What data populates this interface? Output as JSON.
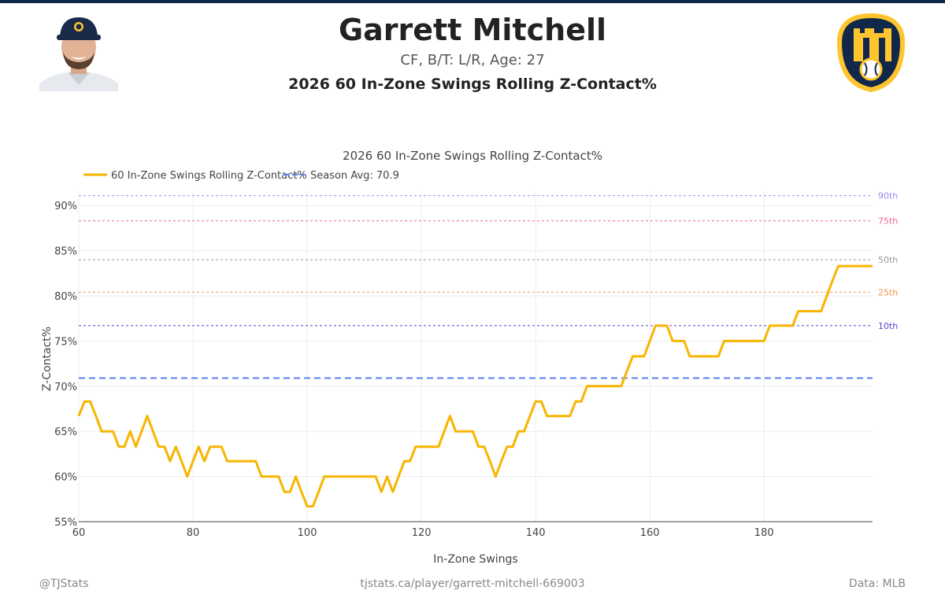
{
  "header": {
    "player_name": "Garrett Mitchell",
    "player_info": "CF, B/T: L/R, Age: 27",
    "chart_heading": "2026 60 In-Zone Swings Rolling Z-Contact%"
  },
  "footer": {
    "handle": "@TJStats",
    "url": "tjstats.ca/player/garrett-mitchell-669003",
    "source": "Data: MLB"
  },
  "colors": {
    "line": "#f7b500",
    "season_avg": "#5a82f0",
    "team_navy": "#12284b",
    "team_gold": "#ffc52f"
  },
  "chart_data": {
    "type": "line",
    "title": "2026 60 In-Zone Swings Rolling Z-Contact%",
    "xlabel": "In-Zone Swings",
    "ylabel": "Z-Contact%",
    "xlim": [
      60,
      199
    ],
    "ylim": [
      55,
      91.5
    ],
    "x_ticks": [
      60,
      80,
      100,
      120,
      140,
      160,
      180
    ],
    "y_ticks": [
      55,
      60,
      65,
      70,
      75,
      80,
      85,
      90
    ],
    "y_tick_labels": [
      "55%",
      "60%",
      "65%",
      "70%",
      "75%",
      "80%",
      "85%",
      "90%"
    ],
    "grid": true,
    "legend_position": "top-left",
    "series": [
      {
        "name": "60 In-Zone Swings Rolling Z-Contact%",
        "x": [
          60,
          61,
          62,
          63,
          64,
          65,
          66,
          67,
          68,
          69,
          70,
          71,
          72,
          73,
          74,
          75,
          76,
          77,
          78,
          79,
          80,
          81,
          82,
          83,
          84,
          85,
          86,
          87,
          88,
          89,
          90,
          91,
          92,
          93,
          94,
          95,
          96,
          97,
          98,
          99,
          100,
          101,
          102,
          103,
          104,
          105,
          106,
          107,
          108,
          109,
          110,
          111,
          112,
          113,
          114,
          115,
          116,
          117,
          118,
          119,
          120,
          121,
          122,
          123,
          124,
          125,
          126,
          127,
          128,
          129,
          130,
          131,
          132,
          133,
          134,
          135,
          136,
          137,
          138,
          139,
          140,
          141,
          142,
          143,
          144,
          145,
          146,
          147,
          148,
          149,
          150,
          151,
          152,
          153,
          154,
          155,
          156,
          157,
          158,
          159,
          160,
          161,
          162,
          163,
          164,
          165,
          166,
          167,
          168,
          169,
          170,
          171,
          172,
          173,
          174,
          175,
          176,
          177,
          178,
          179,
          180,
          181,
          182,
          183,
          184,
          185,
          186,
          187,
          188,
          189,
          190,
          191,
          192,
          193,
          194,
          195,
          196,
          197,
          198,
          199
        ],
        "values": [
          66.7,
          68.3,
          68.3,
          66.7,
          65,
          65,
          65,
          63.3,
          63.3,
          65,
          63.3,
          65,
          66.7,
          65,
          63.3,
          63.3,
          61.7,
          63.3,
          61.7,
          60,
          61.7,
          63.3,
          61.7,
          63.3,
          63.3,
          63.3,
          61.7,
          61.7,
          61.7,
          61.7,
          61.7,
          61.7,
          60,
          60,
          60,
          60,
          58.3,
          58.3,
          60,
          58.3,
          56.7,
          56.7,
          58.3,
          60,
          60,
          60,
          60,
          60,
          60,
          60,
          60,
          60,
          60,
          58.3,
          60,
          58.3,
          60,
          61.7,
          61.7,
          63.3,
          63.3,
          63.3,
          63.3,
          63.3,
          65,
          66.7,
          65,
          65,
          65,
          65,
          63.3,
          63.3,
          61.7,
          60,
          61.7,
          63.3,
          63.3,
          65,
          65,
          66.7,
          68.3,
          68.3,
          66.7,
          66.7,
          66.7,
          66.7,
          66.7,
          68.3,
          68.3,
          70,
          70,
          70,
          70,
          70,
          70,
          70,
          71.7,
          73.3,
          73.3,
          73.3,
          75,
          76.7,
          76.7,
          76.7,
          75,
          75,
          75,
          73.3,
          73.3,
          73.3,
          73.3,
          73.3,
          73.3,
          75,
          75,
          75,
          75,
          75,
          75,
          75,
          75,
          76.7,
          76.7,
          76.7,
          76.7,
          76.7,
          78.3,
          78.3,
          78.3,
          78.3,
          78.3,
          80,
          81.7,
          83.3,
          83.3,
          83.3,
          83.3,
          83.3,
          83.3,
          83.3
        ]
      }
    ],
    "season_avg": {
      "label": "Season Avg: 70.9",
      "value": 70.9
    },
    "percentiles": [
      {
        "label": "90th",
        "value": 91.1,
        "color": "#9b8df0"
      },
      {
        "label": "75th",
        "value": 88.3,
        "color": "#e76a8f"
      },
      {
        "label": "50th",
        "value": 84.0,
        "color": "#999999"
      },
      {
        "label": "25th",
        "value": 80.4,
        "color": "#f0964a"
      },
      {
        "label": "10th",
        "value": 76.7,
        "color": "#5b3fd1"
      }
    ]
  }
}
